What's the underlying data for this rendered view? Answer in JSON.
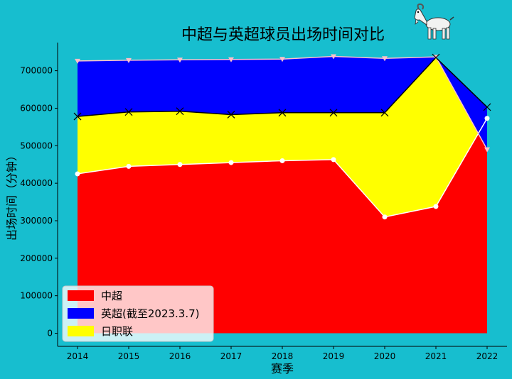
{
  "chart_data": {
    "type": "area",
    "title": "中超与英超球员出场时间对比",
    "xlabel": "赛季",
    "ylabel": "出场时间（分钟）",
    "categories": [
      "2014",
      "2015",
      "2016",
      "2017",
      "2018",
      "2019",
      "2020",
      "2021",
      "2022"
    ],
    "ylim": [
      -35000,
      775000
    ],
    "yticks": [
      0,
      100000,
      200000,
      300000,
      400000,
      500000,
      600000,
      700000
    ],
    "series": [
      {
        "name": "中超",
        "color": "#ff0000",
        "marker": "o",
        "line_color": "#ffffff",
        "values": [
          425000,
          445000,
          450000,
          455000,
          460000,
          463000,
          310000,
          338000,
          573000
        ]
      },
      {
        "name": "英超(截至2023.3.7)",
        "color": "#0000ff",
        "marker": "v",
        "line_color": "#ffc0cb",
        "values": [
          726000,
          728000,
          729000,
          730000,
          731000,
          738000,
          733000,
          737000,
          490000
        ]
      },
      {
        "name": "日职联",
        "color": "#ffff00",
        "marker": "x",
        "line_color": "#000000",
        "values": [
          578000,
          590000,
          592000,
          583000,
          588000,
          588000,
          588000,
          735000,
          603000
        ]
      }
    ],
    "legend_position": "lower-left",
    "grid": false
  },
  "decoration": {
    "icon": "goat-icon"
  }
}
